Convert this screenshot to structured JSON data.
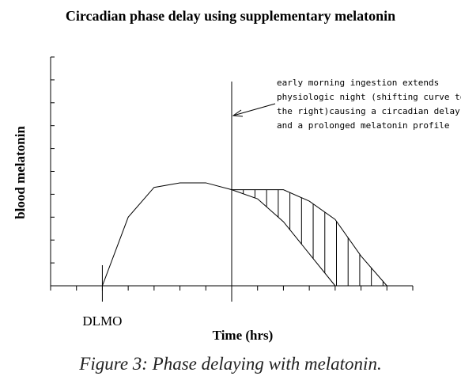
{
  "chart_data": {
    "type": "line",
    "title": "Circadian phase delay using supplementary melatonin",
    "xlabel": "Time (hrs)",
    "ylabel": "blood melatonin",
    "x_tick_labels": [
      {
        "x": 2,
        "label": "DLMO"
      }
    ],
    "xlim": [
      0,
      14
    ],
    "ylim": [
      0,
      10
    ],
    "series": [
      {
        "values": [
          {
            "x": 1,
            "y": 0
          },
          {
            "x": 2,
            "y": 0
          },
          {
            "x": 3,
            "y": 3
          },
          {
            "x": 4,
            "y": 4.3
          },
          {
            "x": 5,
            "y": 4.5
          },
          {
            "x": 6,
            "y": 4.5
          },
          {
            "x": 7,
            "y": 4.2
          },
          {
            "x": 8,
            "y": 3.8
          },
          {
            "x": 9,
            "y": 2.8
          },
          {
            "x": 10,
            "y": 1.4
          },
          {
            "x": 11,
            "y": 0
          }
        ]
      },
      {
        "values": [
          {
            "x": 7,
            "y": 4.2
          },
          {
            "x": 9,
            "y": 4.2
          },
          {
            "x": 10,
            "y": 3.7
          },
          {
            "x": 11,
            "y": 2.9
          },
          {
            "x": 12,
            "y": 1.3
          },
          {
            "x": 13,
            "y": 0
          }
        ]
      }
    ],
    "vertical_line_x": 7,
    "shaded_between_series": true,
    "annotation": {
      "lines": [
        "early morning ingestion extends",
        "physiologic night (shifting curve to",
        "the right)causing a circadian delay",
        "and a prolonged melatonin profile"
      ],
      "arrow_to_x": 7
    },
    "grid": false,
    "legend": "none"
  },
  "caption": "Figure 3: Phase delaying with melatonin."
}
